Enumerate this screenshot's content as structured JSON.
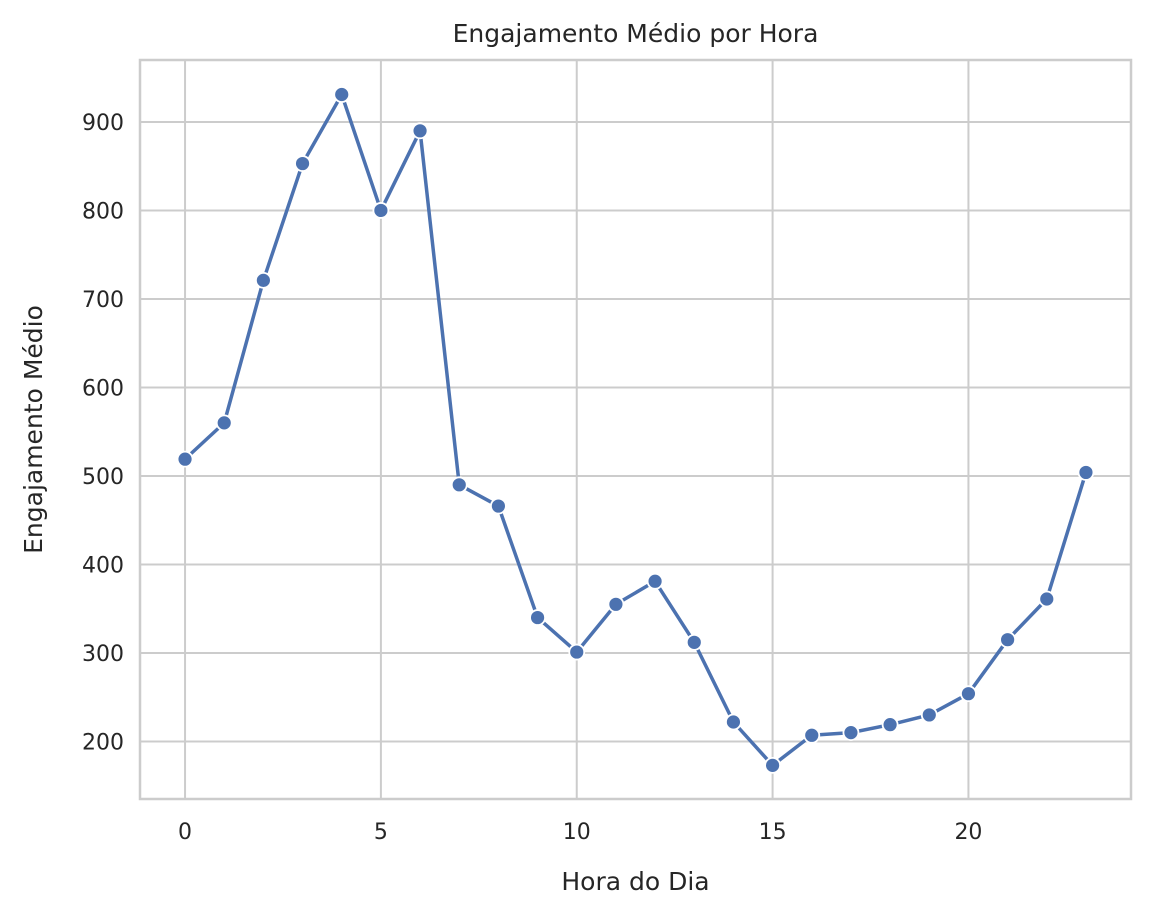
{
  "chart_data": {
    "type": "line",
    "title": "Engajamento Médio por Hora",
    "xlabel": "Hora do Dia",
    "ylabel": "Engajamento Médio",
    "x": [
      0,
      1,
      2,
      3,
      4,
      5,
      6,
      7,
      8,
      9,
      10,
      11,
      12,
      13,
      14,
      15,
      16,
      17,
      18,
      19,
      20,
      21,
      22,
      23
    ],
    "series": [
      {
        "values": [
          519,
          560,
          721,
          853,
          931,
          800,
          890,
          490,
          466,
          340,
          301,
          355,
          381,
          312,
          222,
          173,
          207,
          210,
          219,
          230,
          254,
          315,
          361,
          504
        ]
      }
    ],
    "xticks": [
      0,
      5,
      10,
      15,
      20
    ],
    "yticks": [
      200,
      300,
      400,
      500,
      600,
      700,
      800,
      900
    ],
    "xlim": [
      -1.15,
      24.15
    ],
    "ylim": [
      135,
      970
    ],
    "grid": true,
    "legend": "none",
    "colors": {
      "line": "#4c72b0",
      "grid": "#cccccc",
      "spine": "#cccccc",
      "text": "#262626",
      "marker_edge": "#ffffff"
    }
  }
}
